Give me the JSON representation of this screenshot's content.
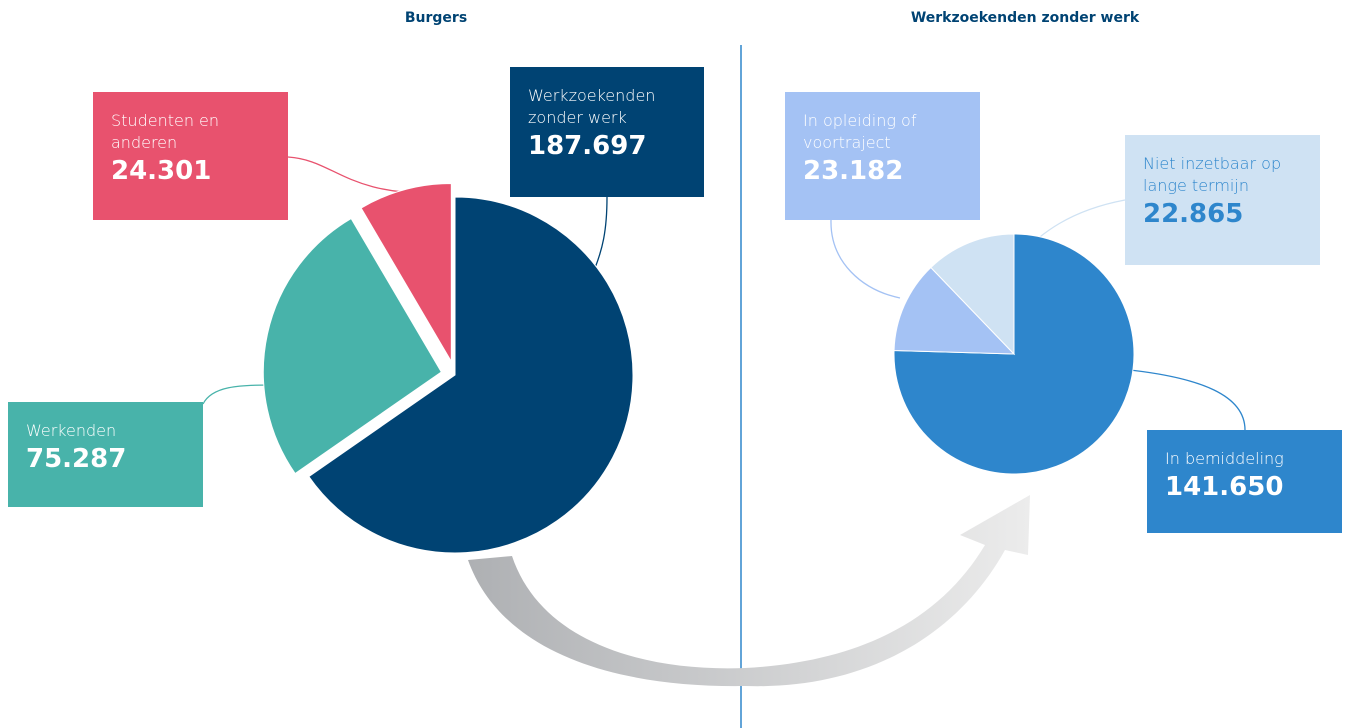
{
  "chart_data": [
    {
      "type": "pie",
      "title": "Burgers",
      "categories": [
        "Werkzoekenden zonder werk",
        "Werkenden",
        "Studenten en anderen"
      ],
      "values": [
        187697,
        75287,
        24301
      ],
      "value_labels": [
        "187.697",
        "75.287",
        "24.301"
      ],
      "colors": [
        "#004373",
        "#48b3aa",
        "#e8526e"
      ]
    },
    {
      "type": "pie",
      "title": "Werkzoekenden zonder werk",
      "categories": [
        "In bemiddeling",
        "In opleiding of voortraject",
        "Niet inzetbaar op lange termijn"
      ],
      "values": [
        141650,
        23182,
        22865
      ],
      "value_labels": [
        "141.650",
        "23.182",
        "22.865"
      ],
      "colors": [
        "#2e86cc",
        "#a4c2f4",
        "#cfe2f3"
      ]
    }
  ]
}
